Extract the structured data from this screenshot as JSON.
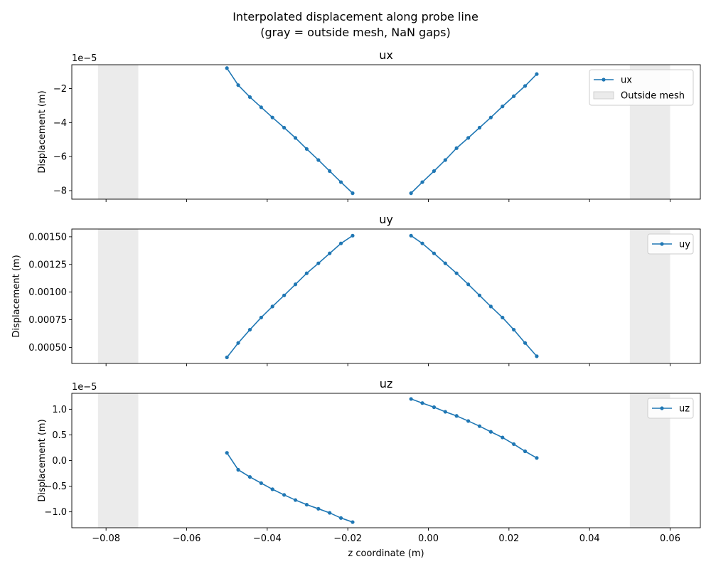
{
  "suptitle": {
    "line1": "Interpolated displacement along probe line",
    "line2": "(gray = outside mesh, NaN gaps)"
  },
  "xlabel": "z coordinate (m)",
  "colors": {
    "line": "#1f77b4",
    "shade": "#d3d3d3"
  },
  "chart_data": [
    {
      "type": "line",
      "title": "ux",
      "ylabel": "Displacement (m)",
      "offset_text": "1e−5",
      "xlim": [
        -0.0885,
        0.0675
      ],
      "ylim": [
        -8.5e-05,
        -6e-06
      ],
      "xticks": [
        -0.08,
        -0.06,
        -0.04,
        -0.02,
        0.0,
        0.02,
        0.04,
        0.06
      ],
      "xtick_labels": [],
      "yticks": [
        -8e-05,
        -6e-05,
        -4e-05,
        -2e-05
      ],
      "ytick_labels": [
        "−8",
        "−6",
        "−4",
        "−2"
      ],
      "shaded_spans": [
        [
          -0.082,
          -0.072
        ],
        [
          0.05,
          0.06
        ]
      ],
      "series": [
        {
          "name": "ux",
          "x": [
            -0.05,
            -0.0472,
            -0.0443,
            -0.0415,
            -0.0387,
            -0.0358,
            -0.033,
            -0.0302,
            -0.0273,
            -0.0245,
            -0.0217,
            -0.0188,
            null,
            -0.0043,
            -0.0015,
            0.0014,
            0.0042,
            0.007,
            0.0099,
            0.0127,
            0.0155,
            0.0184,
            0.0212,
            0.024,
            0.0269
          ],
          "y": [
            -8e-06,
            -1.8e-05,
            -2.5e-05,
            -3.1e-05,
            -3.7e-05,
            -4.3e-05,
            -4.9e-05,
            -5.55e-05,
            -6.2e-05,
            -6.85e-05,
            -7.5e-05,
            -8.15e-05,
            null,
            -8.15e-05,
            -7.5e-05,
            -6.85e-05,
            -6.2e-05,
            -5.5e-05,
            -4.9e-05,
            -4.3e-05,
            -3.7e-05,
            -3.05e-05,
            -2.45e-05,
            -1.85e-05,
            -1.15e-05
          ]
        }
      ],
      "legend": {
        "location": "upper right",
        "entries": [
          "ux",
          "Outside mesh"
        ]
      }
    },
    {
      "type": "line",
      "title": "uy",
      "ylabel": "Displacement (m)",
      "offset_text": "",
      "xlim": [
        -0.0885,
        0.0675
      ],
      "ylim": [
        0.000355,
        0.00157
      ],
      "xticks": [
        -0.08,
        -0.06,
        -0.04,
        -0.02,
        0.0,
        0.02,
        0.04,
        0.06
      ],
      "xtick_labels": [],
      "yticks": [
        0.0005,
        0.00075,
        0.001,
        0.00125,
        0.0015
      ],
      "ytick_labels": [
        "0.00050",
        "0.00075",
        "0.00100",
        "0.00125",
        "0.00150"
      ],
      "shaded_spans": [
        [
          -0.082,
          -0.072
        ],
        [
          0.05,
          0.06
        ]
      ],
      "series": [
        {
          "name": "uy",
          "x": [
            -0.05,
            -0.0472,
            -0.0443,
            -0.0415,
            -0.0387,
            -0.0358,
            -0.033,
            -0.0302,
            -0.0273,
            -0.0245,
            -0.0217,
            -0.0188,
            null,
            -0.0043,
            -0.0015,
            0.0014,
            0.0042,
            0.007,
            0.0099,
            0.0127,
            0.0155,
            0.0184,
            0.0212,
            0.024,
            0.0269
          ],
          "y": [
            0.00041,
            0.00054,
            0.00066,
            0.00077,
            0.00087,
            0.00097,
            0.00107,
            0.00117,
            0.00126,
            0.00135,
            0.00144,
            0.00151,
            null,
            0.00151,
            0.00144,
            0.00135,
            0.00126,
            0.00117,
            0.00107,
            0.00097,
            0.00087,
            0.00077,
            0.00066,
            0.00054,
            0.00042
          ]
        }
      ],
      "legend": {
        "location": "upper right",
        "entries": [
          "uy"
        ]
      }
    },
    {
      "type": "line",
      "title": "uz",
      "ylabel": "Displacement (m)",
      "offset_text": "1e−5",
      "xlim": [
        -0.0885,
        0.0675
      ],
      "ylim": [
        -1.31e-05,
        1.31e-05
      ],
      "xticks": [
        -0.08,
        -0.06,
        -0.04,
        -0.02,
        0.0,
        0.02,
        0.04,
        0.06
      ],
      "xtick_labels": [
        "−0.08",
        "−0.06",
        "−0.04",
        "−0.02",
        "0.00",
        "0.02",
        "0.04",
        "0.06"
      ],
      "yticks": [
        -1e-05,
        -5e-06,
        0.0,
        5e-06,
        1e-05
      ],
      "ytick_labels": [
        "−1.0",
        "−0.5",
        "0.0",
        "0.5",
        "1.0"
      ],
      "shaded_spans": [
        [
          -0.082,
          -0.072
        ],
        [
          0.05,
          0.06
        ]
      ],
      "series": [
        {
          "name": "uz",
          "x": [
            -0.05,
            -0.0472,
            -0.0443,
            -0.0415,
            -0.0387,
            -0.0358,
            -0.033,
            -0.0302,
            -0.0273,
            -0.0245,
            -0.0217,
            -0.0188,
            null,
            -0.0043,
            -0.0015,
            0.0014,
            0.0042,
            0.007,
            0.0099,
            0.0127,
            0.0155,
            0.0184,
            0.0212,
            0.024,
            0.0269
          ],
          "y": [
            1.5e-06,
            -1.8e-06,
            -3.2e-06,
            -4.4e-06,
            -5.6e-06,
            -6.7e-06,
            -7.7e-06,
            -8.6e-06,
            -9.4e-06,
            -1.02e-05,
            -1.12e-05,
            -1.2e-05,
            null,
            1.2e-05,
            1.12e-05,
            1.04e-05,
            9.5e-06,
            8.7e-06,
            7.7e-06,
            6.7e-06,
            5.6e-06,
            4.5e-06,
            3.2e-06,
            1.8e-06,
            5e-07
          ]
        }
      ],
      "legend": {
        "location": "upper right",
        "entries": [
          "uz"
        ]
      }
    }
  ]
}
